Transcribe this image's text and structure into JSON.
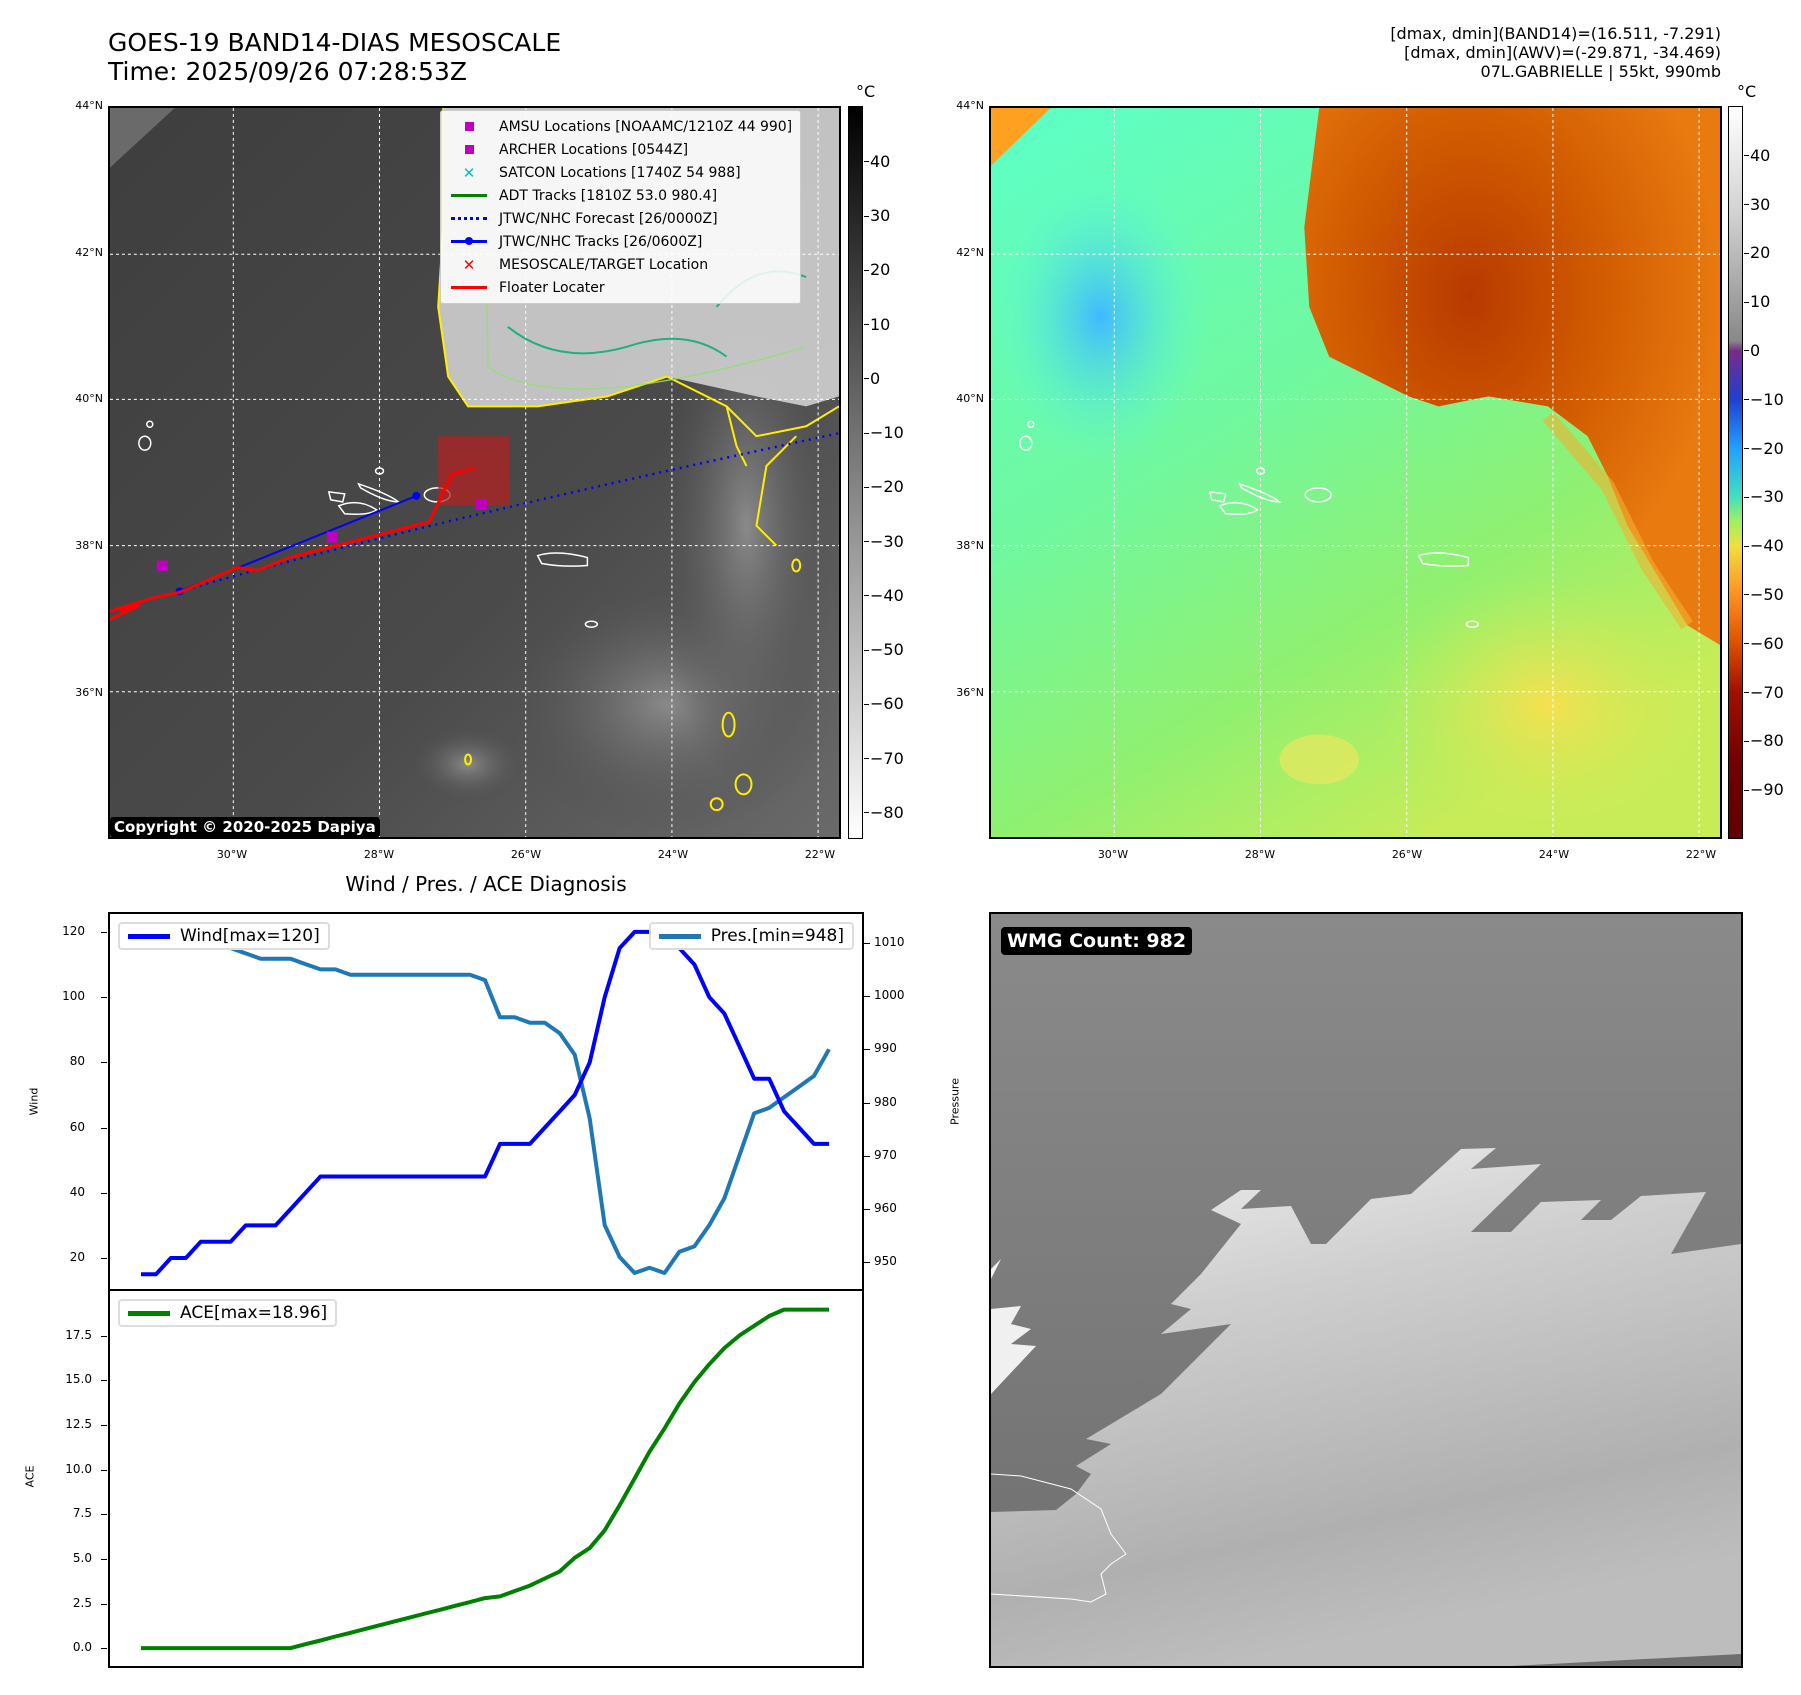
{
  "header": {
    "title_line1": "GOES-19 BAND14-DIAS MESOSCALE",
    "title_line2": "Time: 2025/09/26 07:28:53Z",
    "info_line1": "[dmax, dmin](BAND14)=(16.511, -7.291)",
    "info_line2": "[dmax, dmin](AWV)=(-29.871, -34.469)",
    "info_line3": "07L.GABRIELLE | 55kt, 990mb"
  },
  "map_axes": {
    "lat_labels": [
      "44°N",
      "42°N",
      "40°N",
      "38°N",
      "36°N"
    ],
    "lon_labels": [
      "30°W",
      "28°W",
      "26°W",
      "24°W",
      "22°W"
    ]
  },
  "ir_map": {
    "colorbar_unit": "°C",
    "colorbar_ticks": [
      "40",
      "30",
      "20",
      "10",
      "0",
      "−10",
      "−20",
      "−30",
      "−40",
      "−50",
      "−60",
      "−70",
      "−80"
    ],
    "copyright": "Copyright © 2020-2025 Dapiya",
    "legend": [
      {
        "label": "AMSU Locations [NOAAMC/1210Z 44 990]",
        "symbol": "square",
        "color": "#c000c0"
      },
      {
        "label": "ARCHER Locations [0544Z]",
        "symbol": "square",
        "color": "#c000c0"
      },
      {
        "label": "SATCON Locations [1740Z 54 988]",
        "symbol": "x",
        "color": "#00c0c0"
      },
      {
        "label": "ADT Tracks [1810Z 53.0 980.4]",
        "symbol": "line",
        "color": "#008000"
      },
      {
        "label": "JTWC/NHC Forecast [26/0000Z]",
        "symbol": "dotted",
        "color": "#0000ff"
      },
      {
        "label": "JTWC/NHC Tracks [26/0600Z]",
        "symbol": "line-dot",
        "color": "#0000ff"
      },
      {
        "label": "MESOSCALE/TARGET Location",
        "symbol": "x",
        "color": "#ff0000"
      },
      {
        "label": "Floater Locater",
        "symbol": "line",
        "color": "#ff0000"
      }
    ]
  },
  "wv_map": {
    "colorbar_unit": "°C",
    "colorbar_ticks": [
      "40",
      "30",
      "20",
      "10",
      "0",
      "−10",
      "−20",
      "−30",
      "−40",
      "−50",
      "−60",
      "−70",
      "−80",
      "−90"
    ]
  },
  "wmg_panel": {
    "label": "WMG Count: 982"
  },
  "chart_data": [
    {
      "type": "line",
      "title": "Wind / Pres. / ACE Diagnosis",
      "ylabel": "Wind",
      "y2label": "Pressure",
      "ylim": [
        10.5,
        125.5
      ],
      "y2lim": [
        945,
        1015.4
      ],
      "yticks": [
        20,
        40,
        60,
        80,
        100,
        120
      ],
      "y2ticks": [
        950,
        960,
        970,
        980,
        990,
        1000,
        1010
      ],
      "series": [
        {
          "name": "Wind[max=120]",
          "color": "#0000ff",
          "axis": "left",
          "values": [
            15,
            15,
            20,
            20,
            25,
            25,
            25,
            30,
            30,
            30,
            35,
            40,
            45,
            45,
            45,
            45,
            45,
            45,
            45,
            45,
            45,
            45,
            45,
            45,
            55,
            55,
            55,
            60,
            65,
            70,
            80,
            100,
            115,
            120,
            120,
            120,
            115,
            110,
            100,
            95,
            85,
            75,
            75,
            65,
            60,
            55,
            55
          ]
        },
        {
          "name": "Pres.[min=948]",
          "color": "#1f77b4",
          "axis": "right",
          "values": [
            1012,
            1012,
            1011,
            1011,
            1010,
            1010,
            1009,
            1008,
            1007,
            1007,
            1007,
            1006,
            1005,
            1005,
            1004,
            1004,
            1004,
            1004,
            1004,
            1004,
            1004,
            1004,
            1004,
            1003,
            996,
            996,
            995,
            995,
            993,
            989,
            977,
            957,
            951,
            948,
            949,
            948,
            952,
            953,
            957,
            962,
            970,
            978,
            979,
            981,
            983,
            985,
            990
          ]
        }
      ]
    },
    {
      "type": "line",
      "ylabel": "ACE",
      "ylim": [
        -1.0,
        20.0
      ],
      "yticks": [
        "0.0",
        "2.5",
        "5.0",
        "7.5",
        "10.0",
        "12.5",
        "15.0",
        "17.5"
      ],
      "series": [
        {
          "name": "ACE[max=18.96]",
          "color": "#008000",
          "values": [
            0,
            0,
            0,
            0,
            0,
            0,
            0,
            0,
            0,
            0,
            0,
            0.22,
            0.43,
            0.65,
            0.86,
            1.08,
            1.29,
            1.51,
            1.72,
            1.94,
            2.15,
            2.37,
            2.58,
            2.8,
            2.9,
            3.2,
            3.5,
            3.9,
            4.3,
            5.06,
            5.6,
            6.6,
            8.0,
            9.5,
            11.0,
            12.3,
            13.7,
            14.9,
            15.9,
            16.8,
            17.5,
            18.05,
            18.6,
            18.96,
            18.96,
            18.96,
            18.96
          ]
        }
      ]
    }
  ]
}
